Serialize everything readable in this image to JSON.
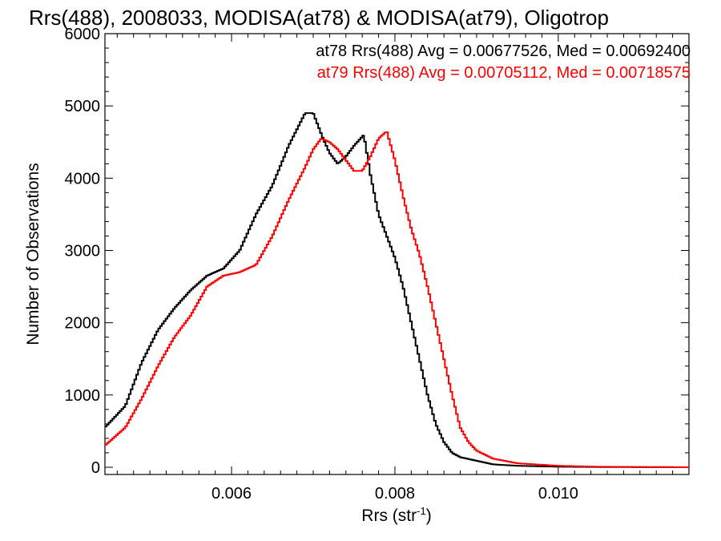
{
  "chart_data": {
    "type": "line",
    "title": "Rrs(488), 2008033, MODISA(at78) & MODISA(at79), Oligotrop",
    "xlabel": "Rrs (str",
    "xlabel_sup": "-1",
    "xlabel_close": ")",
    "ylabel": "Number of Observations",
    "xlim": [
      0.00445,
      0.0116
    ],
    "ylim": [
      -100,
      6000
    ],
    "xticks": [
      "0.006",
      "0.008",
      "0.010"
    ],
    "xtick_values": [
      0.006,
      0.008,
      0.01
    ],
    "yticks": [
      "0",
      "1000",
      "2000",
      "3000",
      "4000",
      "5000",
      "6000"
    ],
    "ytick_values": [
      0,
      1000,
      2000,
      3000,
      4000,
      5000,
      6000
    ],
    "grid": false,
    "legend_position": "top-right",
    "annotations": [
      {
        "text": "at78 Rrs(488) Avg = 0.00677526, Med = 0.00692400",
        "color": "#000000"
      },
      {
        "text": "at79 Rrs(488) Avg = 0.00705112, Med = 0.00718575",
        "color": "#ff0000"
      }
    ],
    "series": [
      {
        "color": "#000000",
        "x": [
          0.00445,
          0.0047,
          0.0049,
          0.0051,
          0.0053,
          0.0055,
          0.0057,
          0.0059,
          0.0061,
          0.0063,
          0.0065,
          0.0067,
          0.0069,
          0.007,
          0.00712,
          0.0072,
          0.0073,
          0.0074,
          0.0075,
          0.00762,
          0.0077,
          0.0078,
          0.0079,
          0.008,
          0.0081,
          0.0082,
          0.0083,
          0.0084,
          0.0085,
          0.0086,
          0.0087,
          0.0088,
          0.009,
          0.0092,
          0.0095,
          0.01,
          0.0105,
          0.0116
        ],
        "y": [
          550,
          850,
          1450,
          1900,
          2200,
          2450,
          2650,
          2750,
          3000,
          3500,
          3900,
          4450,
          4900,
          4900,
          4550,
          4350,
          4200,
          4300,
          4450,
          4600,
          4050,
          3500,
          3200,
          2900,
          2500,
          2000,
          1500,
          1000,
          600,
          350,
          200,
          140,
          90,
          40,
          20,
          8,
          3,
          0
        ]
      },
      {
        "color": "#ff0000",
        "x": [
          0.00445,
          0.0047,
          0.0049,
          0.0051,
          0.0053,
          0.0055,
          0.0057,
          0.0059,
          0.0061,
          0.0063,
          0.0065,
          0.0067,
          0.0069,
          0.007,
          0.0071,
          0.0072,
          0.0073,
          0.0074,
          0.0075,
          0.0076,
          0.0077,
          0.0078,
          0.0079,
          0.008,
          0.0081,
          0.0082,
          0.0083,
          0.0084,
          0.0085,
          0.0086,
          0.0087,
          0.0088,
          0.0089,
          0.009,
          0.0092,
          0.0095,
          0.01,
          0.0105,
          0.0116
        ],
        "y": [
          300,
          550,
          950,
          1400,
          1800,
          2100,
          2500,
          2650,
          2700,
          2800,
          3200,
          3700,
          4150,
          4400,
          4550,
          4500,
          4400,
          4250,
          4100,
          4100,
          4300,
          4550,
          4650,
          4250,
          3750,
          3300,
          2950,
          2500,
          2000,
          1500,
          1000,
          550,
          350,
          230,
          120,
          55,
          20,
          7,
          0
        ]
      }
    ]
  }
}
